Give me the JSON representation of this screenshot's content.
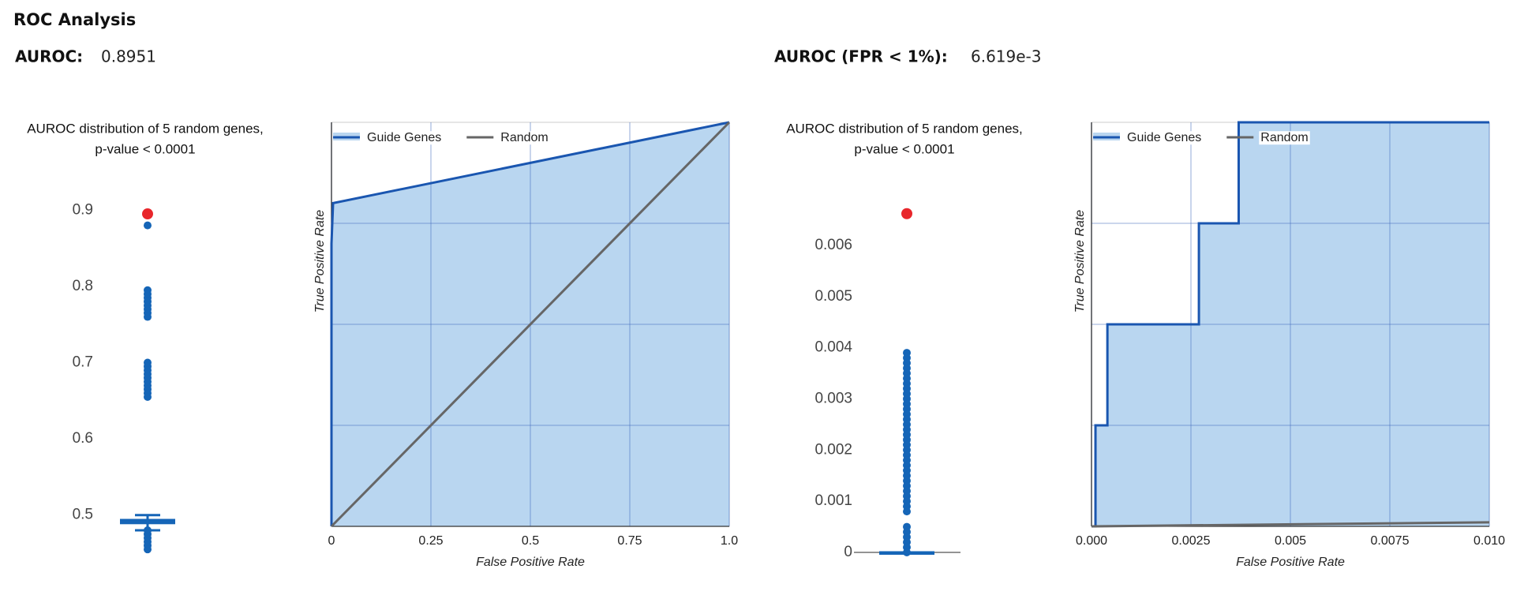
{
  "header": {
    "title": "ROC Analysis",
    "metrics": [
      {
        "label": "AUROC:",
        "value": "0.8951"
      },
      {
        "label": "AUROC (FPR < 1%):",
        "value": "6.619e-3"
      }
    ]
  },
  "chart_data": [
    {
      "type": "strip",
      "title": [
        "AUROC distribution of 5 random genes,",
        "p-value < 0.0001"
      ],
      "ylim": [
        0.45,
        0.92
      ],
      "yticks": [
        0.5,
        0.6,
        0.7,
        0.8,
        0.9
      ],
      "color": "#1565b7",
      "values": [
        0.88,
        0.795,
        0.79,
        0.785,
        0.78,
        0.775,
        0.77,
        0.765,
        0.76,
        0.7,
        0.695,
        0.69,
        0.685,
        0.68,
        0.675,
        0.67,
        0.665,
        0.66,
        0.655,
        0.48,
        0.475,
        0.47,
        0.465,
        0.46,
        0.455
      ],
      "box": {
        "low": 0.48,
        "q1": 0.488,
        "median": 0.492,
        "q3": 0.495,
        "high": 0.5
      },
      "highlight": {
        "value": 0.8951,
        "color": "#e8262b"
      }
    },
    {
      "type": "roc",
      "xlabel": "False Positive Rate",
      "ylabel": "True Positive Rate",
      "xlim": [
        0,
        1
      ],
      "xticks": [
        0,
        0.25,
        0.5,
        0.75,
        {
          "value": 1,
          "label": "1.0"
        }
      ],
      "ylim": [
        0,
        1
      ],
      "ygrid": [
        0.25,
        0.5,
        0.75
      ],
      "legend": "top-left",
      "series": [
        {
          "name": "Guide Genes",
          "color": "#1a56b0",
          "fill": "#b9d6f0",
          "x": [
            0,
            0,
            0.004,
            1
          ],
          "values": [
            0,
            0.7,
            0.8,
            1
          ]
        },
        {
          "name": "Random",
          "color": "#666666",
          "x": [
            0,
            1
          ],
          "values": [
            0,
            1
          ]
        }
      ]
    },
    {
      "type": "strip",
      "title": [
        "AUROC distribution of 5 random genes,",
        "p-value < 0.0001"
      ],
      "ylim": [
        0,
        0.0068
      ],
      "yticks": [
        0,
        0.001,
        0.002,
        0.003,
        0.004,
        0.005,
        0.006
      ],
      "color": "#1565b7",
      "values": [
        0.0039,
        0.0038,
        0.0037,
        0.0036,
        0.0035,
        0.0034,
        0.0033,
        0.0032,
        0.0031,
        0.003,
        0.0029,
        0.0028,
        0.0027,
        0.0026,
        0.0025,
        0.0024,
        0.0023,
        0.0022,
        0.0021,
        0.002,
        0.0019,
        0.0018,
        0.0017,
        0.0016,
        0.0015,
        0.0014,
        0.0013,
        0.0012,
        0.0011,
        0.001,
        0.0009,
        0.0008,
        0.0005,
        0.0004,
        0.0003,
        0.0002,
        0.0001,
        0
      ],
      "box": {
        "low": 0,
        "q1": 0,
        "median": 0,
        "q3": 0,
        "high": 0
      },
      "highlight": {
        "value": 0.006619,
        "color": "#e8262b"
      }
    },
    {
      "type": "roc",
      "xlabel": "False Positive Rate",
      "ylabel": "True Positive Rate",
      "xlim": [
        0,
        0.01
      ],
      "xticks": [
        {
          "value": 0,
          "label": "0.000"
        },
        0.0025,
        0.005,
        0.0075,
        {
          "value": 0.01,
          "label": "0.010"
        }
      ],
      "ylim": [
        0,
        1
      ],
      "ygrid": [
        0.25,
        0.5,
        0.75
      ],
      "legend": "top-left",
      "series": [
        {
          "name": "Guide Genes",
          "color": "#1a56b0",
          "fill": "#b9d6f0",
          "x": [
            0,
            0.0001,
            0.0001,
            0.0004,
            0.0004,
            0.0027,
            0.0027,
            0.0037,
            0.0037,
            0.01
          ],
          "values": [
            0,
            0,
            0.25,
            0.25,
            0.5,
            0.5,
            0.75,
            0.75,
            1,
            1
          ]
        },
        {
          "name": "Random",
          "color": "#666666",
          "x": [
            0,
            0.01
          ],
          "values": [
            0,
            0.01
          ]
        }
      ]
    }
  ]
}
